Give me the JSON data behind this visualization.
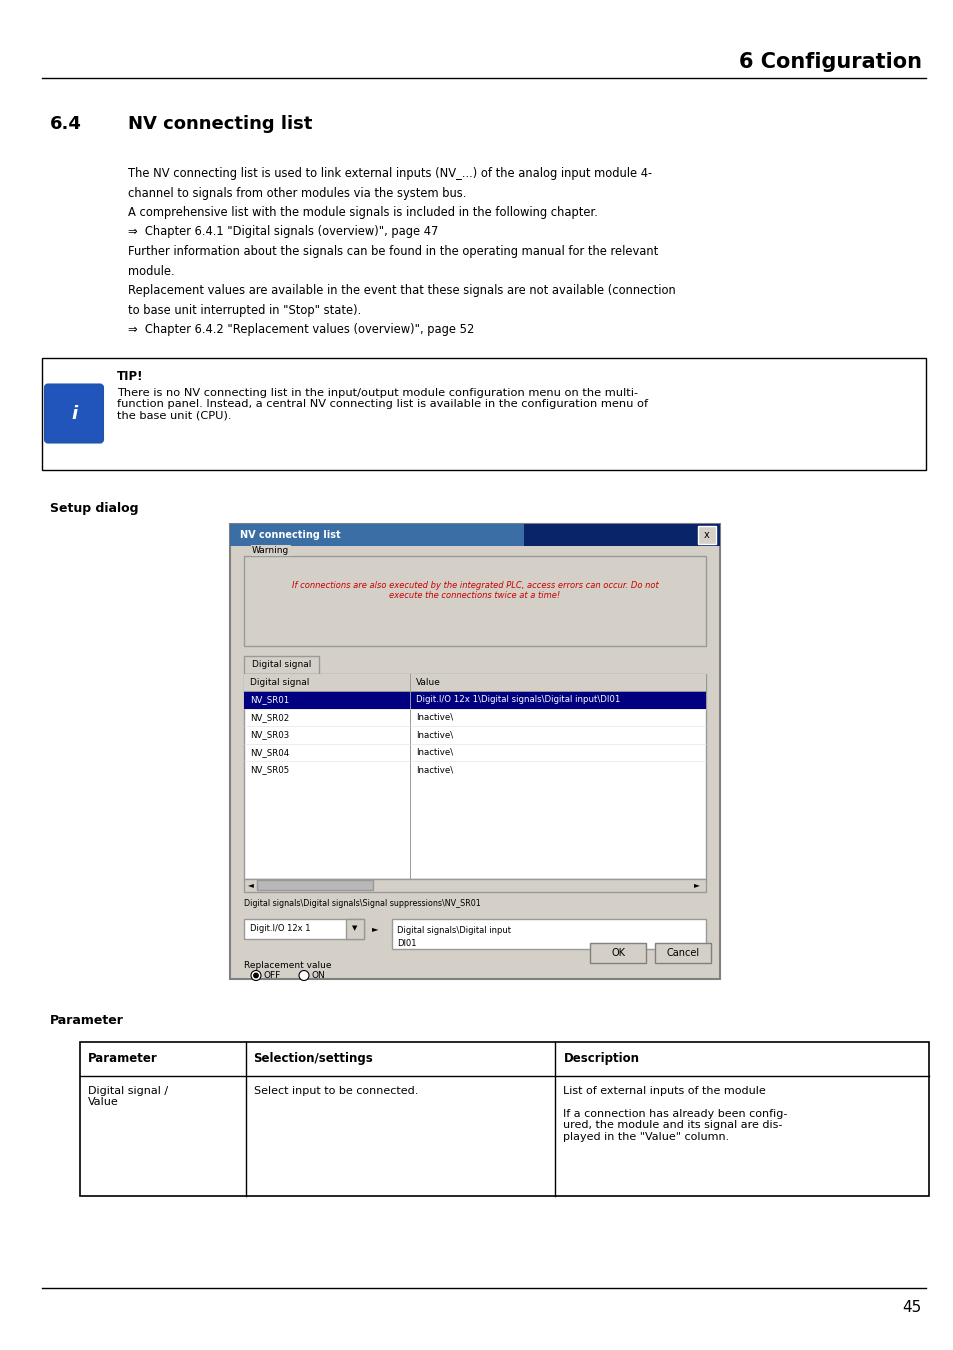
{
  "page_width": 9.54,
  "page_height": 13.5,
  "bg_color": "#ffffff",
  "header_text": "6 Configuration",
  "section_number": "6.4",
  "section_title": "NV connecting list",
  "body_text_lines": [
    "The NV connecting list is used to link external inputs (NV_...) of the analog input module 4-",
    "channel to signals from other modules via the system bus.",
    "A comprehensive list with the module signals is included in the following chapter.",
    "⇒  Chapter 6.4.1 \"Digital signals (overview)\", page 47",
    "Further information about the signals can be found in the operating manual for the relevant",
    "module.",
    "Replacement values are available in the event that these signals are not available (connection",
    "to base unit interrupted in \"Stop\" state).",
    "⇒  Chapter 6.4.2 \"Replacement values (overview)\", page 52"
  ],
  "tip_title": "TIP!",
  "tip_text": "There is no NV connecting list in the input/output module configuration menu on the multi-\nfunction panel. Instead, a central NV connecting list is available in the configuration menu of\nthe base unit (CPU).",
  "setup_dialog_label": "Setup dialog",
  "parameter_label": "Parameter",
  "dialog_title": "NV connecting list",
  "warning_label": "Warning",
  "warning_text": "If connections are also executed by the integrated PLC, access errors can occur. Do not\nexecute the connections twice at a time!",
  "tab_label": "Digital signal",
  "col1_header": "Digital signal",
  "col2_header": "Value",
  "table_rows": [
    [
      "NV_SR01",
      "Digit.I/O 12x 1\\Digital signals\\Digital input\\DI01"
    ],
    [
      "NV_SR02",
      "Inactive\\"
    ],
    [
      "NV_SR03",
      "Inactive\\"
    ],
    [
      "NV_SR04",
      "Inactive\\"
    ],
    [
      "NV_SR05",
      "Inactive\\"
    ]
  ],
  "path_text": "Digital signals\\Digital signals\\Signal suppressions\\NV_SR01",
  "dropdown_text": "Digit.I/O 12x 1",
  "right_box_line1": "Digital signals\\Digital input",
  "right_box_line2": "DI01",
  "replacement_label": "Replacement value",
  "radio_off": "OFF",
  "radio_on": "ON",
  "ok_btn": "OK",
  "cancel_btn": "Cancel",
  "param_table_headers": [
    "Parameter",
    "Selection/settings",
    "Description"
  ],
  "param_row_col1": "Digital signal /\nValue",
  "param_row_col2": "Select input to be connected.",
  "param_row_col3": "List of external inputs of the module\n\nIf a connection has already been config-\nured, the module and its signal are dis-\nplayed in the \"Value\" column.",
  "footer_page": "45"
}
